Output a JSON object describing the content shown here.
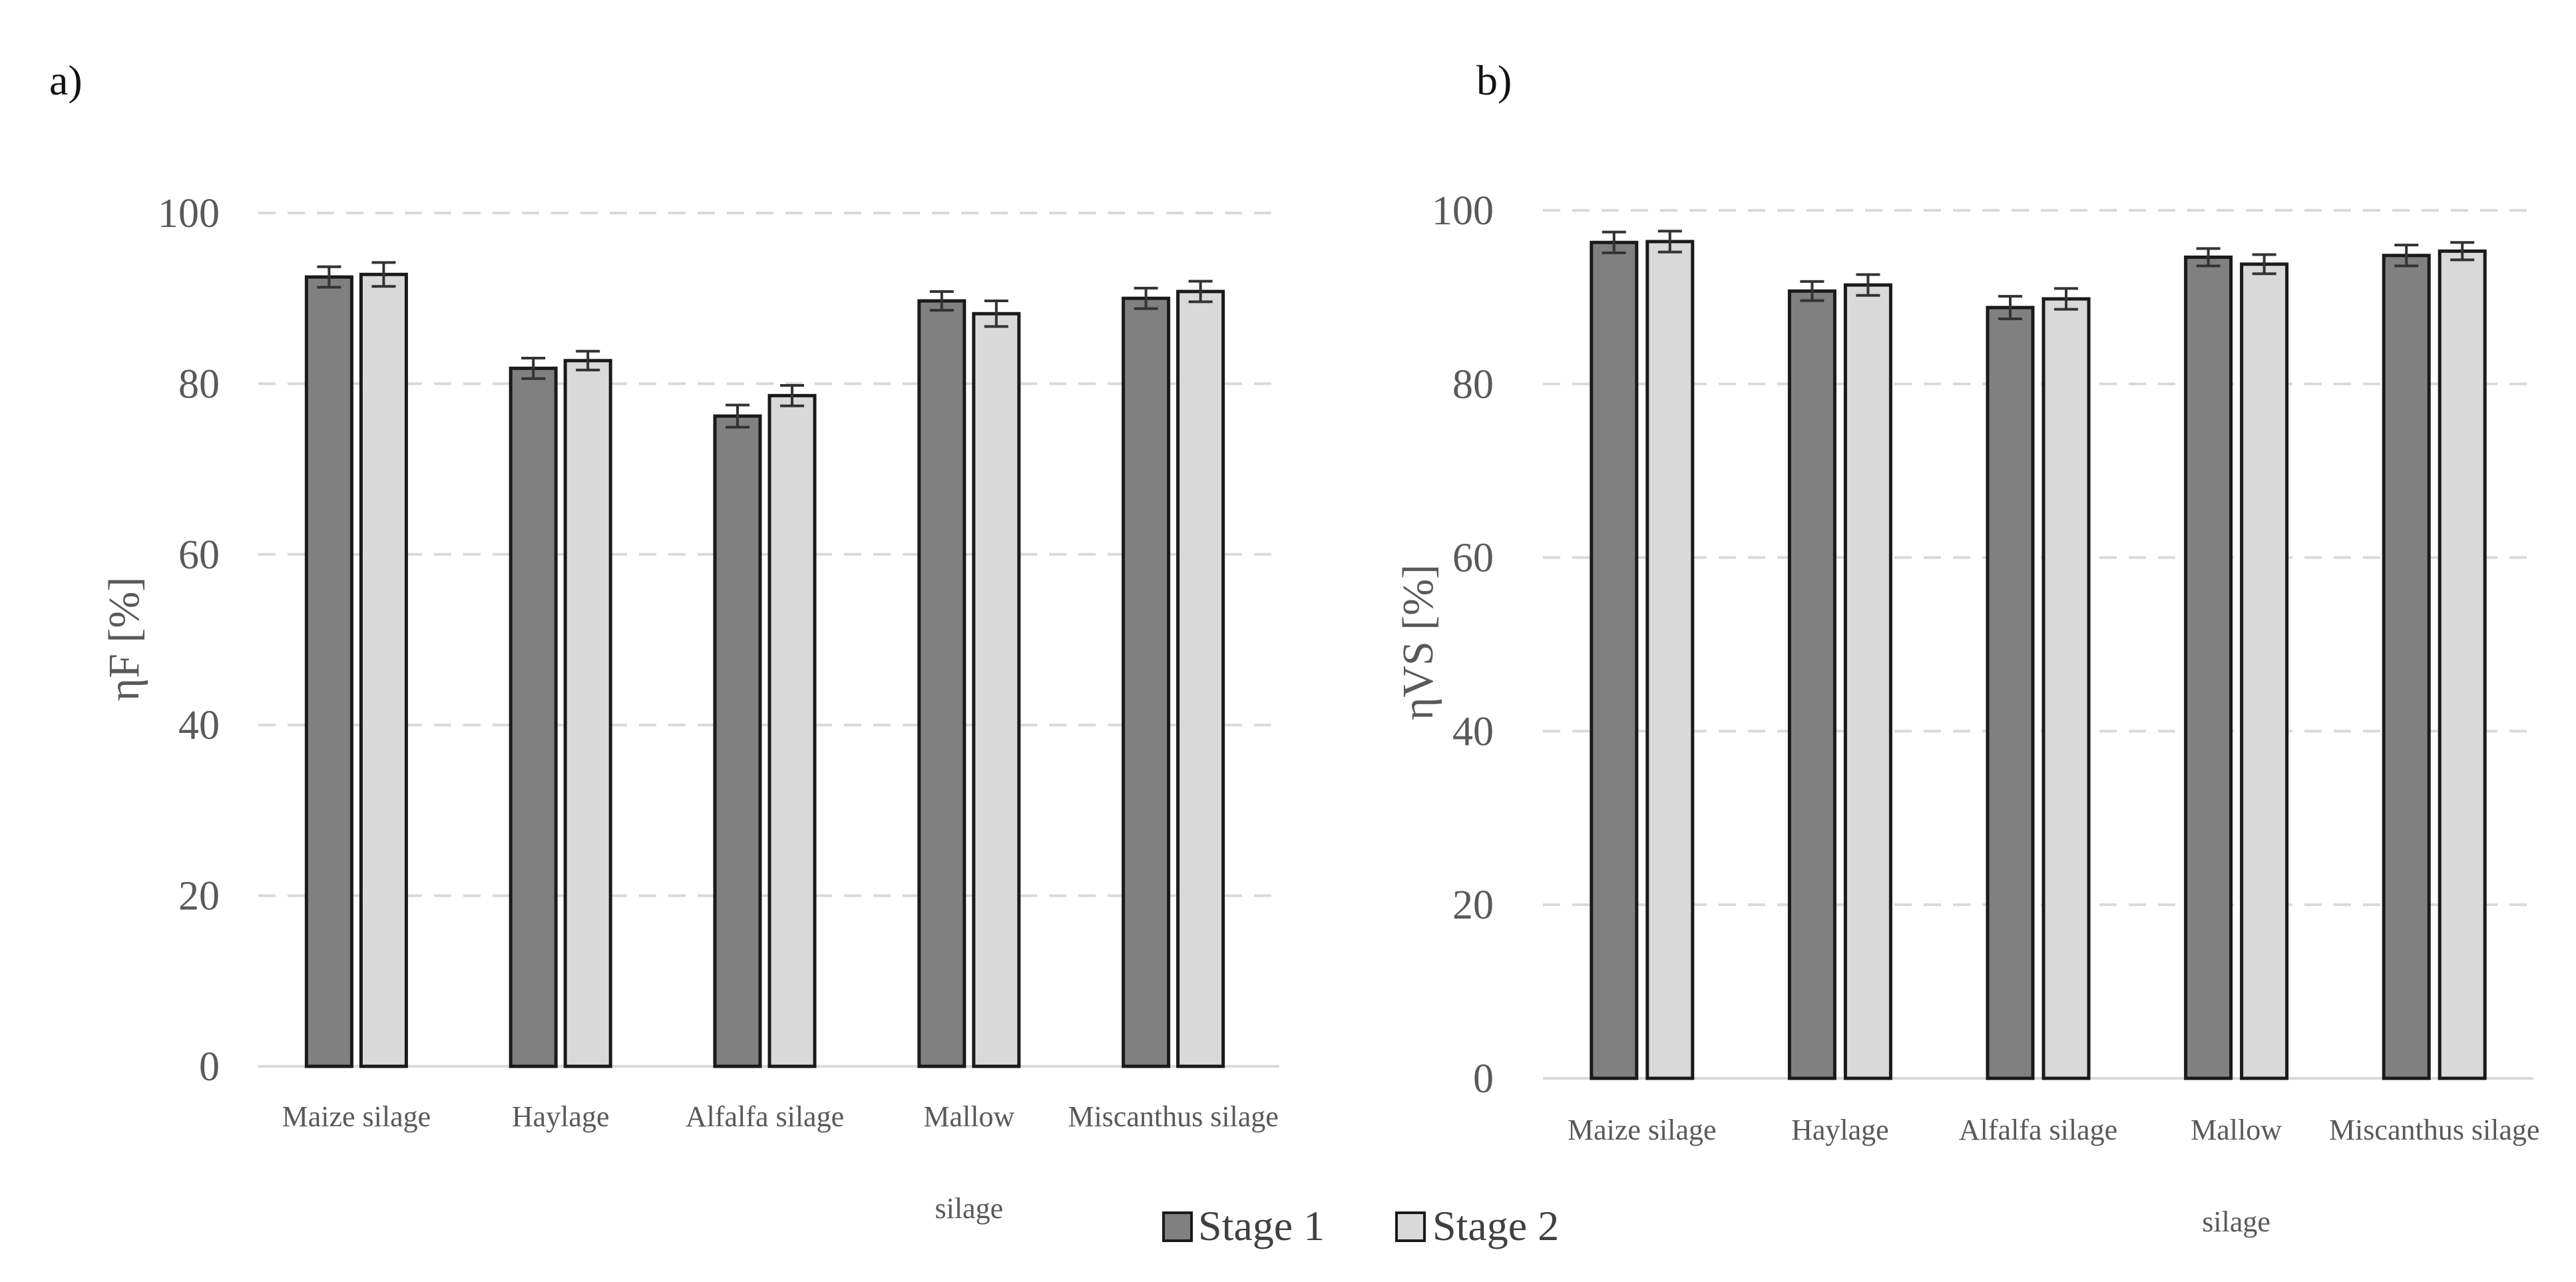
{
  "chart_data": [
    {
      "panel_label": "a)",
      "type": "bar",
      "ylabel": "ηF [%]",
      "ylim": [
        0,
        100
      ],
      "yticks": [
        "0",
        "20",
        "40",
        "60",
        "80",
        "100"
      ],
      "grid": true,
      "categories": [
        [
          "Maize silage"
        ],
        [
          "Haylage"
        ],
        [
          "Alfalfa silage"
        ],
        [
          "Mallow",
          "silage"
        ],
        [
          "Miscanthus silage"
        ]
      ],
      "series": [
        {
          "name": "Stage 1",
          "color": "#808080",
          "values": [
            92.5,
            81.8,
            76.2,
            89.7,
            90.0
          ],
          "errors": [
            1.2,
            1.2,
            1.3,
            1.1,
            1.2
          ]
        },
        {
          "name": "Stage 2",
          "color": "#d9d9d9",
          "values": [
            92.8,
            82.7,
            78.6,
            88.2,
            90.8
          ],
          "errors": [
            1.4,
            1.1,
            1.2,
            1.5,
            1.2
          ]
        }
      ]
    },
    {
      "panel_label": "b)",
      "type": "bar",
      "ylabel": "ηVS [%]",
      "ylim": [
        0,
        100
      ],
      "yticks": [
        "0",
        "20",
        "40",
        "60",
        "80",
        "100"
      ],
      "grid": true,
      "categories": [
        [
          "Maize silage"
        ],
        [
          "Haylage"
        ],
        [
          "Alfalfa silage"
        ],
        [
          "Mallow",
          "silage"
        ],
        [
          "Miscanthus silage"
        ]
      ],
      "series": [
        {
          "name": "Stage 1",
          "color": "#808080",
          "values": [
            96.3,
            90.7,
            88.8,
            94.6,
            94.8
          ],
          "errors": [
            1.2,
            1.1,
            1.3,
            1.0,
            1.2
          ]
        },
        {
          "name": "Stage 2",
          "color": "#d9d9d9",
          "values": [
            96.4,
            91.4,
            89.8,
            93.8,
            95.3
          ],
          "errors": [
            1.2,
            1.2,
            1.2,
            1.1,
            1.0
          ]
        }
      ]
    }
  ],
  "legend": {
    "placement": "bottom-center",
    "items": [
      {
        "label": "Stage 1",
        "color": "#808080"
      },
      {
        "label": "Stage 2",
        "color": "#d9d9d9"
      }
    ]
  }
}
